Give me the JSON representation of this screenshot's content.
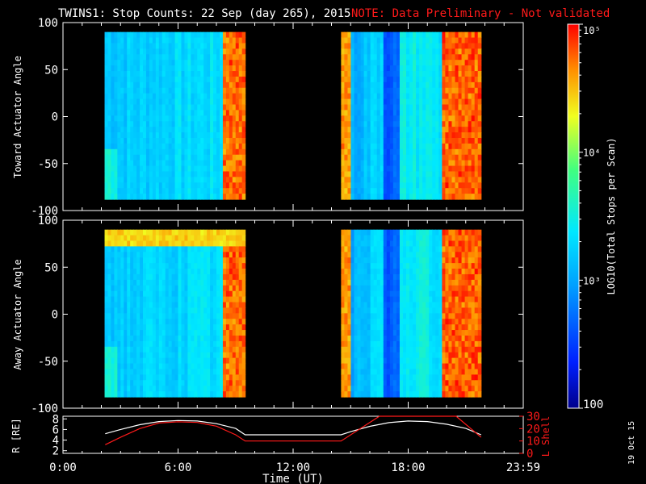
{
  "title": "TWINS1: Stop Counts: 22 Sep (day 265), 2015",
  "note": "NOTE: Data Preliminary - Not validated",
  "footer_date": "19 Oct 15",
  "chart_data": [
    {
      "type": "heatmap",
      "panel": "toward",
      "ylabel": "Toward Actuator Angle",
      "yticks": [
        "100",
        "50",
        "0",
        "-50",
        "-100"
      ],
      "ylim": [
        -100,
        100
      ],
      "xlim": [
        0,
        24
      ],
      "data_blocks": [
        {
          "x": [
            2.17,
            9.5
          ],
          "y": [
            -88,
            90
          ]
        },
        {
          "x": [
            14.5,
            21.8
          ],
          "y": [
            -88,
            90
          ]
        }
      ]
    },
    {
      "type": "heatmap",
      "panel": "away",
      "ylabel": "Away Actuator Angle",
      "yticks": [
        "100",
        "50",
        "0",
        "-50",
        "-100"
      ],
      "ylim": [
        -100,
        100
      ],
      "xlim": [
        0,
        24
      ],
      "data_blocks": [
        {
          "x": [
            2.17,
            9.5
          ],
          "y": [
            -88,
            90
          ]
        },
        {
          "x": [
            14.5,
            21.8
          ],
          "y": [
            -88,
            90
          ]
        }
      ]
    },
    {
      "type": "line",
      "panel": "orbit",
      "ylabel_left": "R [RE]",
      "ylabel_right": "L Shell",
      "yticks_left": [
        "8",
        "6",
        "4",
        "2"
      ],
      "yticks_right": [
        "30",
        "20",
        "10",
        "0"
      ],
      "ylim_left": [
        1.5,
        8.5
      ],
      "ylim_right": [
        0,
        30
      ],
      "xlabel": "Time (UT)",
      "xticks": [
        "0:00",
        "6:00",
        "12:00",
        "18:00",
        "23:59"
      ],
      "xtick_values": [
        0,
        6,
        12,
        18,
        24
      ],
      "series": [
        {
          "axis": "left",
          "color": "#ffffff",
          "x": [
            2.2,
            3,
            4,
            5,
            6,
            7,
            8,
            9,
            9.5,
            14.5,
            15,
            16,
            17,
            18,
            19,
            20,
            21,
            21.8
          ],
          "y": [
            5.2,
            6.0,
            6.9,
            7.5,
            7.7,
            7.6,
            7.1,
            6.2,
            5.0,
            5.0,
            5.6,
            6.6,
            7.3,
            7.6,
            7.5,
            7.0,
            6.2,
            5.0
          ]
        },
        {
          "axis": "right",
          "color": "#ff1a1a",
          "x": [
            2.2,
            3,
            4,
            5,
            6,
            7,
            8,
            9,
            9.5,
            14.5,
            16.5,
            20.5,
            21.8
          ],
          "y": [
            7,
            13,
            20,
            24.5,
            25.5,
            25,
            22,
            15,
            10,
            10,
            31,
            31,
            13
          ]
        }
      ]
    },
    {
      "type": "heatmap",
      "panel": "colorbar",
      "label": "LOG10(Total Stops per Scan)",
      "ticks": [
        "10⁵",
        "10⁴",
        "10³",
        "100"
      ],
      "range": [
        100,
        100000
      ]
    }
  ]
}
